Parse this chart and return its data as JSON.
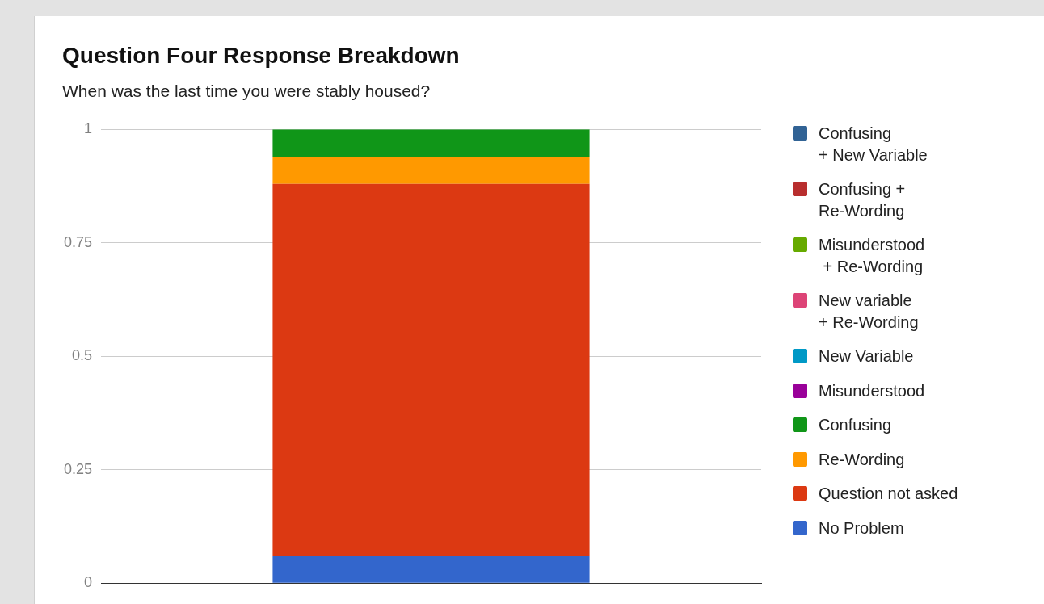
{
  "chart_data": {
    "type": "bar",
    "title": "Question Four Response Breakdown",
    "subtitle": "When was the last time you were stably housed?",
    "categories": [
      null
    ],
    "series": [
      {
        "name": "No Problem",
        "color": "#3366cc",
        "values": [
          0.06
        ]
      },
      {
        "name": "Question not asked",
        "color": "#dc3912",
        "values": [
          0.82
        ]
      },
      {
        "name": "Re-Wording",
        "color": "#ff9900",
        "values": [
          0.06
        ]
      },
      {
        "name": "Confusing",
        "color": "#109618",
        "values": [
          0.06
        ]
      },
      {
        "name": "Misunderstood",
        "color": "#990099",
        "values": [
          0
        ]
      },
      {
        "name": "New Variable",
        "color": "#0099c6",
        "values": [
          0
        ]
      },
      {
        "name": "New variable\n+ Re-Wording",
        "color": "#dd4477",
        "values": [
          0
        ]
      },
      {
        "name": "Misunderstood\n + Re-Wording",
        "color": "#66aa00",
        "values": [
          0
        ]
      },
      {
        "name": "Confusing +\nRe-Wording",
        "color": "#b82e2e",
        "values": [
          0
        ]
      },
      {
        "name": "Confusing\n+ New Variable",
        "color": "#316395",
        "values": [
          0
        ]
      }
    ],
    "stacked": true,
    "ylim": [
      0,
      1
    ],
    "yticks": [
      0,
      0.25,
      0.5,
      0.75,
      1
    ],
    "grid": "y",
    "legend": "right",
    "tick_labels": "y"
  }
}
